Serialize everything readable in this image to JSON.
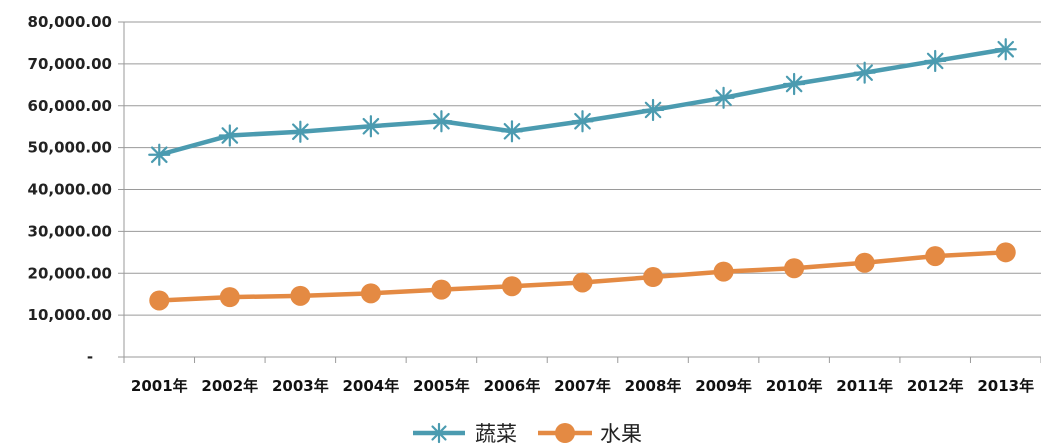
{
  "chart_data": {
    "type": "line",
    "x": [
      "2001年",
      "2002年",
      "2003年",
      "2004年",
      "2005年",
      "2006年",
      "2007年",
      "2008年",
      "2009年",
      "2010年",
      "2011年",
      "2012年",
      "2013年"
    ],
    "series": [
      {
        "name": "蔬菜",
        "marker": "asterisk",
        "color": "#4b9bb0",
        "values": [
          48300,
          52900,
          53800,
          55100,
          56300,
          53900,
          56300,
          59000,
          61900,
          65200,
          67900,
          70700,
          73500
        ]
      },
      {
        "name": "水果",
        "marker": "circle",
        "color": "#e48a43",
        "values": [
          13500,
          14300,
          14600,
          15200,
          16100,
          16900,
          17800,
          19100,
          20400,
          21200,
          22500,
          24100,
          25000
        ]
      }
    ],
    "ylim": [
      0,
      80000
    ],
    "yticks": [
      0,
      10000,
      20000,
      30000,
      40000,
      50000,
      60000,
      70000,
      80000
    ],
    "ytick_labels": [
      "-",
      "10,000.00",
      "20,000.00",
      "30,000.00",
      "40,000.00",
      "50,000.00",
      "60,000.00",
      "70,000.00",
      "80,000.00"
    ],
    "grid": true,
    "legend_position": "bottom",
    "title": "",
    "xlabel": "",
    "ylabel": ""
  }
}
